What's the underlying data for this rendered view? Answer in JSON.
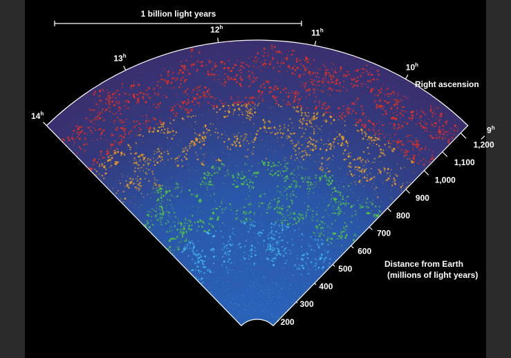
{
  "scale_bar": {
    "label": "1 billion light years"
  },
  "right_ascension": {
    "title": "Right ascension",
    "hours": [
      {
        "hour": 14,
        "label": "14",
        "sup": "h"
      },
      {
        "hour": 13,
        "label": "13",
        "sup": "h"
      },
      {
        "hour": 12,
        "label": "12",
        "sup": "h"
      },
      {
        "hour": 11,
        "label": "11",
        "sup": "h"
      },
      {
        "hour": 10,
        "label": "10",
        "sup": "h"
      },
      {
        "hour": 9,
        "label": "9",
        "sup": "h"
      }
    ]
  },
  "distance_axis": {
    "title_line1": "Distance from Earth",
    "title_line2": "(millions of light years)",
    "ticks": [
      {
        "value": 200,
        "label": "200"
      },
      {
        "value": 300,
        "label": "300"
      },
      {
        "value": 400,
        "label": "400"
      },
      {
        "value": 500,
        "label": "500"
      },
      {
        "value": 600,
        "label": "600"
      },
      {
        "value": 700,
        "label": "700"
      },
      {
        "value": 800,
        "label": "800"
      },
      {
        "value": 900,
        "label": "900"
      },
      {
        "value": 1000,
        "label": "1,000"
      },
      {
        "value": 1100,
        "label": "1,100"
      },
      {
        "value": 1200,
        "label": "1,200"
      }
    ]
  },
  "colors": {
    "background": "#000000",
    "frame": "#2b2b2b",
    "wedge_far": "#3a2f6e",
    "wedge_near": "#2a62b8",
    "galaxy_near": "#3fb6e8",
    "galaxy_mid": "#52c24a",
    "galaxy_far_mid": "#f0a020",
    "galaxy_far": "#e83020",
    "text": "#ffffff"
  }
}
